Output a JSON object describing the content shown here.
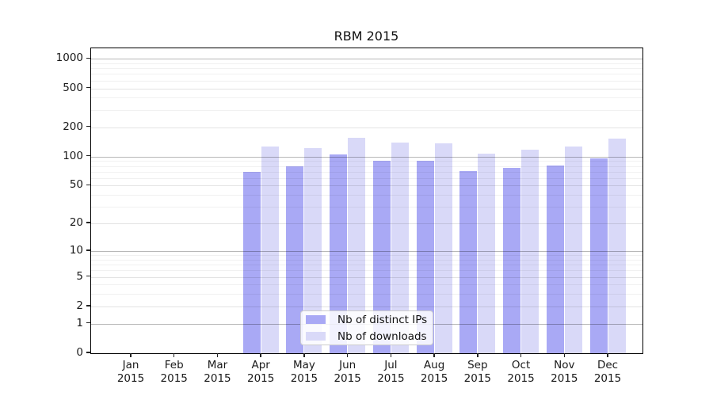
{
  "title": "RBM 2015",
  "chart_data": {
    "type": "bar",
    "title": "RBM 2015",
    "scale": "log1p",
    "ylim": [
      0,
      1280
    ],
    "grid": true,
    "legend_position": "lower center",
    "categories": [
      "Jan",
      "Feb",
      "Mar",
      "Apr",
      "May",
      "Jun",
      "Jul",
      "Aug",
      "Sep",
      "Oct",
      "Nov",
      "Dec"
    ],
    "year_label": "2015",
    "yticks": [
      0,
      1,
      2,
      5,
      10,
      20,
      50,
      100,
      200,
      500,
      1000
    ],
    "minor_grid_values": [
      3,
      4,
      6,
      7,
      8,
      9,
      30,
      40,
      60,
      70,
      80,
      90,
      300,
      400,
      600,
      700,
      800,
      900
    ],
    "mid_grid_values": [
      2,
      5,
      20,
      50,
      200,
      500
    ],
    "major_grid_values": [
      1,
      10,
      100,
      1000
    ],
    "series": [
      {
        "name": "Nb of distinct IPs",
        "key": "distinct-ips",
        "color": "#a9a9f5",
        "values": [
          0,
          0,
          0,
          70,
          80,
          105,
          91,
          91,
          71,
          77,
          81,
          96
        ]
      },
      {
        "name": "Nb of downloads",
        "key": "downloads",
        "color": "#d9d9f8",
        "values": [
          0,
          0,
          0,
          127,
          122,
          157,
          139,
          136,
          107,
          117,
          128,
          152
        ]
      }
    ],
    "colors": {
      "axis": "#000000",
      "tick": "#222222",
      "grid_major": "rgba(0,0,0,0.28)",
      "grid_mid": "rgba(0,0,0,0.11)",
      "grid_minor": "rgba(0,0,0,0.055)",
      "legend_border": "#cccccc",
      "legend_background": "rgba(255,255,255,0.85)"
    }
  }
}
